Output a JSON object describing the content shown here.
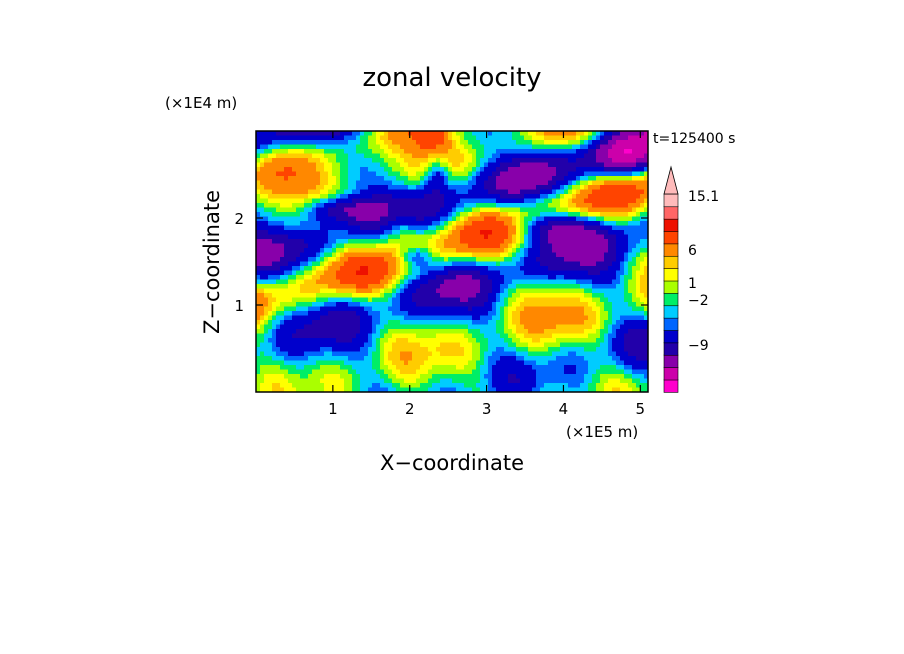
{
  "chart_data": {
    "type": "heatmap",
    "title": "zonal velocity",
    "xlabel": "X−coordinate",
    "ylabel": "Z−coordinate",
    "x_unit": "(×1E5 m)",
    "y_unit": "(×1E4 m)",
    "time_label": "t=125400 s",
    "xlim": [
      0,
      5.1
    ],
    "ylim": [
      0,
      3.0
    ],
    "x_ticks": [
      "1",
      "2",
      "3",
      "4",
      "5"
    ],
    "y_ticks": [
      "1",
      "2"
    ],
    "x_tick_values": [
      1,
      2,
      3,
      4,
      5
    ],
    "y_tick_values": [
      1,
      2
    ],
    "colorbar": {
      "labels": [
        "15.1",
        "6",
        "1",
        "−2",
        "−9"
      ],
      "levels": [
        -15,
        -12,
        -9,
        -6,
        -4,
        -2,
        -1,
        0,
        1,
        2,
        3,
        4,
        6,
        9,
        12,
        15.1
      ],
      "colors": [
        "#ff00cc",
        "#cc00aa",
        "#8800aa",
        "#2200aa",
        "#0000cc",
        "#0066ff",
        "#00ccff",
        "#00ee66",
        "#aaff00",
        "#ffff00",
        "#ffcc00",
        "#ff8800",
        "#ff4400",
        "#ee1100",
        "#ff6666",
        "#ffbbbb"
      ]
    },
    "grid": false,
    "legend": "right"
  }
}
